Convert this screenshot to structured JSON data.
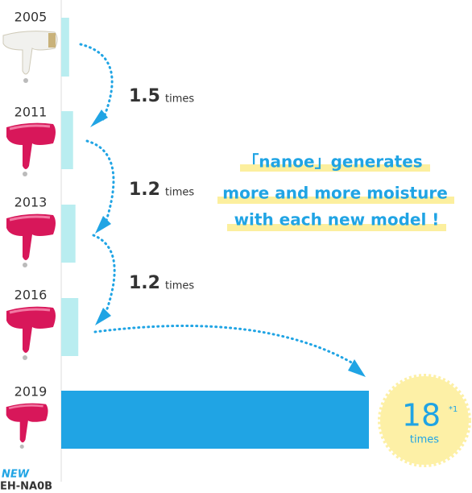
{
  "chart_data": {
    "type": "bar",
    "orientation": "horizontal",
    "categories": [
      "2005",
      "2011",
      "2013",
      "2016",
      "2019"
    ],
    "values": [
      1,
      1.5,
      1.8,
      2.16,
      38.88
    ],
    "colors": [
      "#b9edf0",
      "#b9edf0",
      "#b9edf0",
      "#b9edf0",
      "#20a4e4"
    ],
    "xlim": [
      0,
      40
    ],
    "steps": [
      {
        "ratio": "1.5",
        "unit": "times"
      },
      {
        "ratio": "1.2",
        "unit": "times"
      },
      {
        "ratio": "1.2",
        "unit": "times"
      }
    ],
    "message": [
      "「nanoe」generates",
      "more and more moisture",
      "with each new model !"
    ],
    "badge": {
      "value": "18",
      "note": "*1",
      "unit": "times"
    },
    "model": {
      "tag": "NEW",
      "name": "EH-NA0B"
    }
  }
}
